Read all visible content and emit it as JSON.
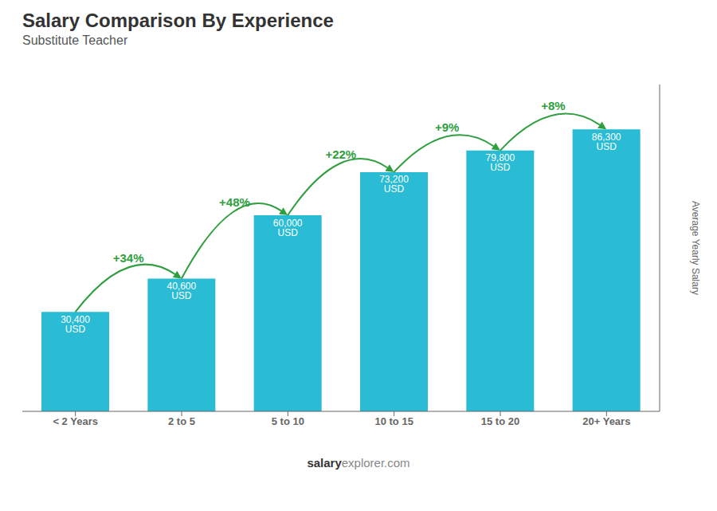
{
  "chart_data": {
    "type": "bar",
    "title": "Salary Comparison By Experience",
    "subtitle": "Substitute Teacher",
    "y_label": "Average Yearly Salary",
    "categories": [
      "< 2 Years",
      "2 to 5",
      "5 to 10",
      "10 to 15",
      "15 to 20",
      "20+ Years"
    ],
    "values": [
      30400,
      40600,
      60000,
      73200,
      79800,
      86300
    ],
    "value_labels": [
      "30,400 USD",
      "40,600 USD",
      "60,000 USD",
      "73,200 USD",
      "79,800 USD",
      "86,300 USD"
    ],
    "data_labels": true,
    "annotations": [
      "+34%",
      "+48%",
      "+22%",
      "+9%",
      "+8%"
    ],
    "footer": [
      "salary",
      "explorer.com"
    ],
    "color": "#29bcd4",
    "ylim": [
      0,
      100000
    ],
    "tick_labels": "x",
    "grid": false
  }
}
